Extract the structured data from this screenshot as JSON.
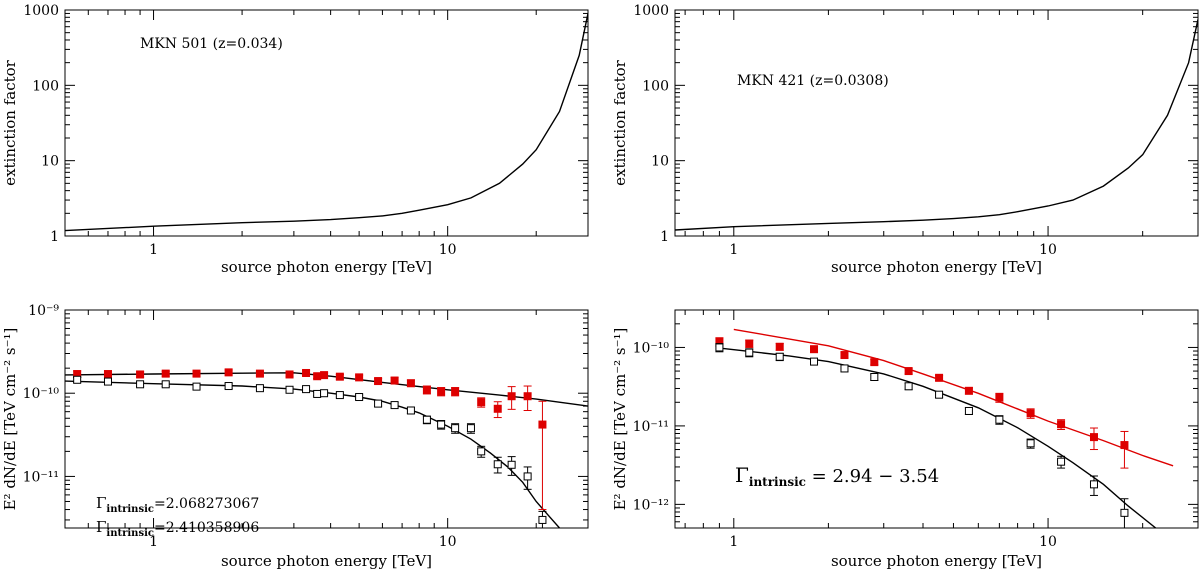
{
  "chart_data": [
    {
      "id": "p1",
      "type": "line",
      "xscale": "log",
      "yscale": "log",
      "xlim": [
        0.5,
        30
      ],
      "ylim": [
        1,
        1000
      ],
      "xlabel": "source photon energy [TeV]",
      "ylabel": "extinction factor",
      "x_ticks": [
        1,
        10
      ],
      "y_ticks": [
        1,
        10,
        100,
        1000
      ],
      "annotations": [
        {
          "text": "MKN 501 (z=0.034)"
        }
      ],
      "series": [
        {
          "name": "extinction",
          "color": "#000000",
          "x": [
            0.5,
            1,
            2,
            3,
            4,
            5,
            6,
            7,
            8,
            10,
            12,
            15,
            18,
            20,
            24,
            28,
            30
          ],
          "y": [
            1.18,
            1.35,
            1.5,
            1.57,
            1.65,
            1.75,
            1.85,
            2.0,
            2.2,
            2.6,
            3.2,
            5.0,
            9.0,
            14,
            45,
            250,
            900
          ]
        }
      ]
    },
    {
      "id": "p2",
      "type": "line",
      "xscale": "log",
      "yscale": "log",
      "xlim": [
        0.65,
        30
      ],
      "ylim": [
        1,
        1000
      ],
      "xlabel": "source photon energy [TeV]",
      "ylabel": "extinction factor",
      "x_ticks": [
        1,
        10
      ],
      "y_ticks": [
        1,
        10,
        100,
        1000
      ],
      "annotations": [
        {
          "text": "MKN 421 (z=0.0308)"
        }
      ],
      "series": [
        {
          "name": "extinction",
          "color": "#000000",
          "x": [
            0.65,
            1,
            2,
            3,
            4,
            5,
            6,
            7,
            8,
            10,
            12,
            15,
            18,
            20,
            24,
            28,
            30
          ],
          "y": [
            1.2,
            1.33,
            1.47,
            1.55,
            1.62,
            1.7,
            1.8,
            1.92,
            2.1,
            2.5,
            3.0,
            4.6,
            8.0,
            12,
            40,
            200,
            750
          ]
        }
      ]
    },
    {
      "id": "p3",
      "type": "scatter",
      "xscale": "log",
      "yscale": "log",
      "xlim": [
        0.5,
        30
      ],
      "ylim": [
        2.4e-12,
        1e-09
      ],
      "xlabel": "source photon energy [TeV]",
      "ylabel": "E² dN/dE  [TeV cm⁻² s⁻¹]",
      "x_ticks": [
        1,
        10
      ],
      "y_ticks": [
        {
          "value": 1e-11,
          "label": "10⁻¹¹"
        },
        {
          "value": 1e-10,
          "label": "10⁻¹⁰"
        },
        {
          "value": 1e-09,
          "label": "10⁻⁹"
        }
      ],
      "gamma_labels": [
        {
          "main": "Γ",
          "sub": "intrinsic",
          "value": "=2.068273067"
        },
        {
          "main": "Γ",
          "sub": "intrinsic",
          "value": "=2.410358906"
        }
      ],
      "series": [
        {
          "name": "intrinsic (deabsorbed)",
          "marker": "filled-square",
          "color": "#dd0000",
          "points": [
            {
              "x": 0.55,
              "y": 1.7e-10,
              "e": 1.5e-11
            },
            {
              "x": 0.7,
              "y": 1.7e-10,
              "e": 1.5e-11
            },
            {
              "x": 0.9,
              "y": 1.68e-10,
              "e": 1.2e-11
            },
            {
              "x": 1.1,
              "y": 1.72e-10,
              "e": 1.2e-11
            },
            {
              "x": 1.4,
              "y": 1.72e-10,
              "e": 1.2e-11
            },
            {
              "x": 1.8,
              "y": 1.78e-10,
              "e": 1.2e-11
            },
            {
              "x": 2.3,
              "y": 1.72e-10,
              "e": 1e-11
            },
            {
              "x": 2.9,
              "y": 1.68e-10,
              "e": 1e-11
            },
            {
              "x": 3.3,
              "y": 1.75e-10,
              "e": 1.2e-11
            },
            {
              "x": 3.6,
              "y": 1.6e-10,
              "e": 1e-11
            },
            {
              "x": 3.8,
              "y": 1.65e-10,
              "e": 1e-11
            },
            {
              "x": 4.3,
              "y": 1.58e-10,
              "e": 1e-11
            },
            {
              "x": 5.0,
              "y": 1.55e-10,
              "e": 1e-11
            },
            {
              "x": 5.8,
              "y": 1.4e-10,
              "e": 1e-11
            },
            {
              "x": 6.6,
              "y": 1.42e-10,
              "e": 1.2e-11
            },
            {
              "x": 7.5,
              "y": 1.32e-10,
              "e": 1.2e-11
            },
            {
              "x": 8.5,
              "y": 1.1e-10,
              "e": 1.2e-11
            },
            {
              "x": 9.5,
              "y": 1.05e-10,
              "e": 1.2e-11
            },
            {
              "x": 10.6,
              "y": 1.05e-10,
              "e": 1.2e-11
            },
            {
              "x": 13.0,
              "y": 7.8e-11,
              "e": 1e-11
            },
            {
              "x": 14.8,
              "y": 6.5e-11,
              "e": 1.4e-11
            },
            {
              "x": 16.5,
              "y": 9.2e-11,
              "e": 2.8e-11
            },
            {
              "x": 18.7,
              "y": 9.2e-11,
              "e": 3e-11
            },
            {
              "x": 21.0,
              "y": 4.2e-11,
              "e": 3.8e-11
            }
          ]
        },
        {
          "name": "observed",
          "marker": "open-square",
          "color": "#000000",
          "points": [
            {
              "x": 0.55,
              "y": 1.45e-10,
              "e": 1e-11
            },
            {
              "x": 0.7,
              "y": 1.38e-10,
              "e": 1e-11
            },
            {
              "x": 0.9,
              "y": 1.28e-10,
              "e": 8e-12
            },
            {
              "x": 1.1,
              "y": 1.28e-10,
              "e": 8e-12
            },
            {
              "x": 1.4,
              "y": 1.2e-10,
              "e": 8e-12
            },
            {
              "x": 1.8,
              "y": 1.22e-10,
              "e": 8e-12
            },
            {
              "x": 2.3,
              "y": 1.15e-10,
              "e": 6e-12
            },
            {
              "x": 2.9,
              "y": 1.1e-10,
              "e": 6e-12
            },
            {
              "x": 3.3,
              "y": 1.12e-10,
              "e": 6e-12
            },
            {
              "x": 3.6,
              "y": 9.8e-11,
              "e": 5e-12
            },
            {
              "x": 3.8,
              "y": 1e-10,
              "e": 5e-12
            },
            {
              "x": 4.3,
              "y": 9.5e-11,
              "e": 5e-12
            },
            {
              "x": 5.0,
              "y": 9e-11,
              "e": 5e-12
            },
            {
              "x": 5.8,
              "y": 7.5e-11,
              "e": 5e-12
            },
            {
              "x": 6.6,
              "y": 7.2e-11,
              "e": 5e-12
            },
            {
              "x": 7.5,
              "y": 6.2e-11,
              "e": 5e-12
            },
            {
              "x": 8.5,
              "y": 4.8e-11,
              "e": 5e-12
            },
            {
              "x": 9.5,
              "y": 4.2e-11,
              "e": 5e-12
            },
            {
              "x": 10.6,
              "y": 3.8e-11,
              "e": 5e-12
            },
            {
              "x": 12.0,
              "y": 3.8e-11,
              "e": 5e-12
            },
            {
              "x": 13.0,
              "y": 2e-11,
              "e": 3e-12
            },
            {
              "x": 14.8,
              "y": 1.4e-11,
              "e": 3e-12
            },
            {
              "x": 16.5,
              "y": 1.38e-11,
              "e": 3.5e-12
            },
            {
              "x": 18.7,
              "y": 1e-11,
              "e": 3e-12
            },
            {
              "x": 21.0,
              "y": 3e-12,
              "e": 8e-13
            }
          ]
        }
      ],
      "fit_curves": [
        {
          "name": "intrinsic fit",
          "color": "#000000",
          "x": [
            0.5,
            1,
            2,
            3,
            4,
            6,
            8,
            10,
            15,
            20,
            30
          ],
          "y": [
            1.66e-10,
            1.7e-10,
            1.74e-10,
            1.76e-10,
            1.6e-10,
            1.35e-10,
            1.2e-10,
            1.1e-10,
            9.5e-11,
            8.5e-11,
            7e-11
          ]
        },
        {
          "name": "observed fit",
          "color": "#000000",
          "x": [
            0.5,
            1,
            2,
            3,
            4,
            5,
            6,
            7,
            8,
            10,
            12,
            14,
            16,
            18,
            20,
            22,
            24
          ],
          "y": [
            1.4e-10,
            1.3e-10,
            1.22e-10,
            1.12e-10,
            1e-10,
            9e-11,
            8e-11,
            6.8e-11,
            5.8e-11,
            4e-11,
            2.8e-11,
            1.9e-11,
            1.3e-11,
            8.5e-12,
            5e-12,
            3.4e-12,
            2.4e-12
          ]
        }
      ]
    },
    {
      "id": "p4",
      "type": "scatter",
      "xscale": "log",
      "yscale": "log",
      "xlim": [
        0.65,
        30
      ],
      "ylim": [
        5e-13,
        3e-10
      ],
      "xlabel": "source photon energy [TeV]",
      "ylabel": "E² dN/dE  [TeV cm⁻² s⁻¹]",
      "x_ticks": [
        1,
        10
      ],
      "y_ticks": [
        {
          "value": 1e-12,
          "label": "10⁻¹²"
        },
        {
          "value": 1e-11,
          "label": "10⁻¹¹"
        },
        {
          "value": 1e-10,
          "label": "10⁻¹⁰"
        }
      ],
      "gamma_labels": [
        {
          "main": "Γ",
          "sub": "intrinsic",
          "value": " =  2.94  −  3.54"
        }
      ],
      "series": [
        {
          "name": "intrinsic (deabsorbed)",
          "marker": "filled-square",
          "color": "#dd0000",
          "points": [
            {
              "x": 0.9,
              "y": 1.18e-10,
              "e": 1.5e-11
            },
            {
              "x": 1.12,
              "y": 1.12e-10,
              "e": 1.2e-11
            },
            {
              "x": 1.4,
              "y": 1.02e-10,
              "e": 1e-11
            },
            {
              "x": 1.8,
              "y": 9.5e-11,
              "e": 8e-12
            },
            {
              "x": 2.25,
              "y": 8e-11,
              "e": 6e-12
            },
            {
              "x": 2.8,
              "y": 6.5e-11,
              "e": 5e-12
            },
            {
              "x": 3.6,
              "y": 5e-11,
              "e": 4e-12
            },
            {
              "x": 4.5,
              "y": 4.1e-11,
              "e": 3e-12
            },
            {
              "x": 5.6,
              "y": 2.8e-11,
              "e": 2.5e-12
            },
            {
              "x": 7.0,
              "y": 2.3e-11,
              "e": 3e-12
            },
            {
              "x": 8.8,
              "y": 1.45e-11,
              "e": 2e-12
            },
            {
              "x": 11.0,
              "y": 1.05e-11,
              "e": 1.5e-12
            },
            {
              "x": 14.0,
              "y": 7.2e-12,
              "e": 2.2e-12
            },
            {
              "x": 17.5,
              "y": 5.7e-12,
              "e": 2.8e-12
            }
          ]
        },
        {
          "name": "observed",
          "marker": "open-square",
          "color": "#000000",
          "points": [
            {
              "x": 0.9,
              "y": 1e-10,
              "e": 1.2e-11
            },
            {
              "x": 1.12,
              "y": 8.6e-11,
              "e": 1e-11
            },
            {
              "x": 1.4,
              "y": 7.6e-11,
              "e": 8e-12
            },
            {
              "x": 1.8,
              "y": 6.6e-11,
              "e": 6e-12
            },
            {
              "x": 2.25,
              "y": 5.4e-11,
              "e": 5e-12
            },
            {
              "x": 2.8,
              "y": 4.2e-11,
              "e": 4e-12
            },
            {
              "x": 3.6,
              "y": 3.2e-11,
              "e": 3e-12
            },
            {
              "x": 4.5,
              "y": 2.5e-11,
              "e": 2e-12
            },
            {
              "x": 5.6,
              "y": 1.55e-11,
              "e": 1.5e-12
            },
            {
              "x": 7.0,
              "y": 1.2e-11,
              "e": 1.5e-12
            },
            {
              "x": 8.8,
              "y": 6e-12,
              "e": 8e-13
            },
            {
              "x": 11.0,
              "y": 3.5e-12,
              "e": 6e-13
            },
            {
              "x": 14.0,
              "y": 1.8e-12,
              "e": 5e-13
            },
            {
              "x": 17.5,
              "y": 7.8e-13,
              "e": 4e-13
            }
          ]
        }
      ],
      "fit_curves": [
        {
          "name": "intrinsic fit",
          "color": "#dd0000",
          "x": [
            1,
            2,
            3,
            4,
            6,
            10,
            15,
            20,
            25
          ],
          "y": [
            1.7e-10,
            1.05e-10,
            6.8e-11,
            4.6e-11,
            2.6e-11,
            1.15e-11,
            6.5e-12,
            4.2e-12,
            3.1e-12
          ]
        },
        {
          "name": "observed fit",
          "color": "#000000",
          "x": [
            0.9,
            1.5,
            2,
            3,
            4,
            6,
            8,
            10,
            12,
            15,
            18,
            22
          ],
          "y": [
            9.8e-11,
            7.8e-11,
            6.6e-11,
            4.6e-11,
            3.2e-11,
            1.7e-11,
            9.5e-12,
            5.5e-12,
            3.4e-12,
            1.8e-12,
            9.5e-13,
            5e-13
          ]
        }
      ]
    }
  ]
}
